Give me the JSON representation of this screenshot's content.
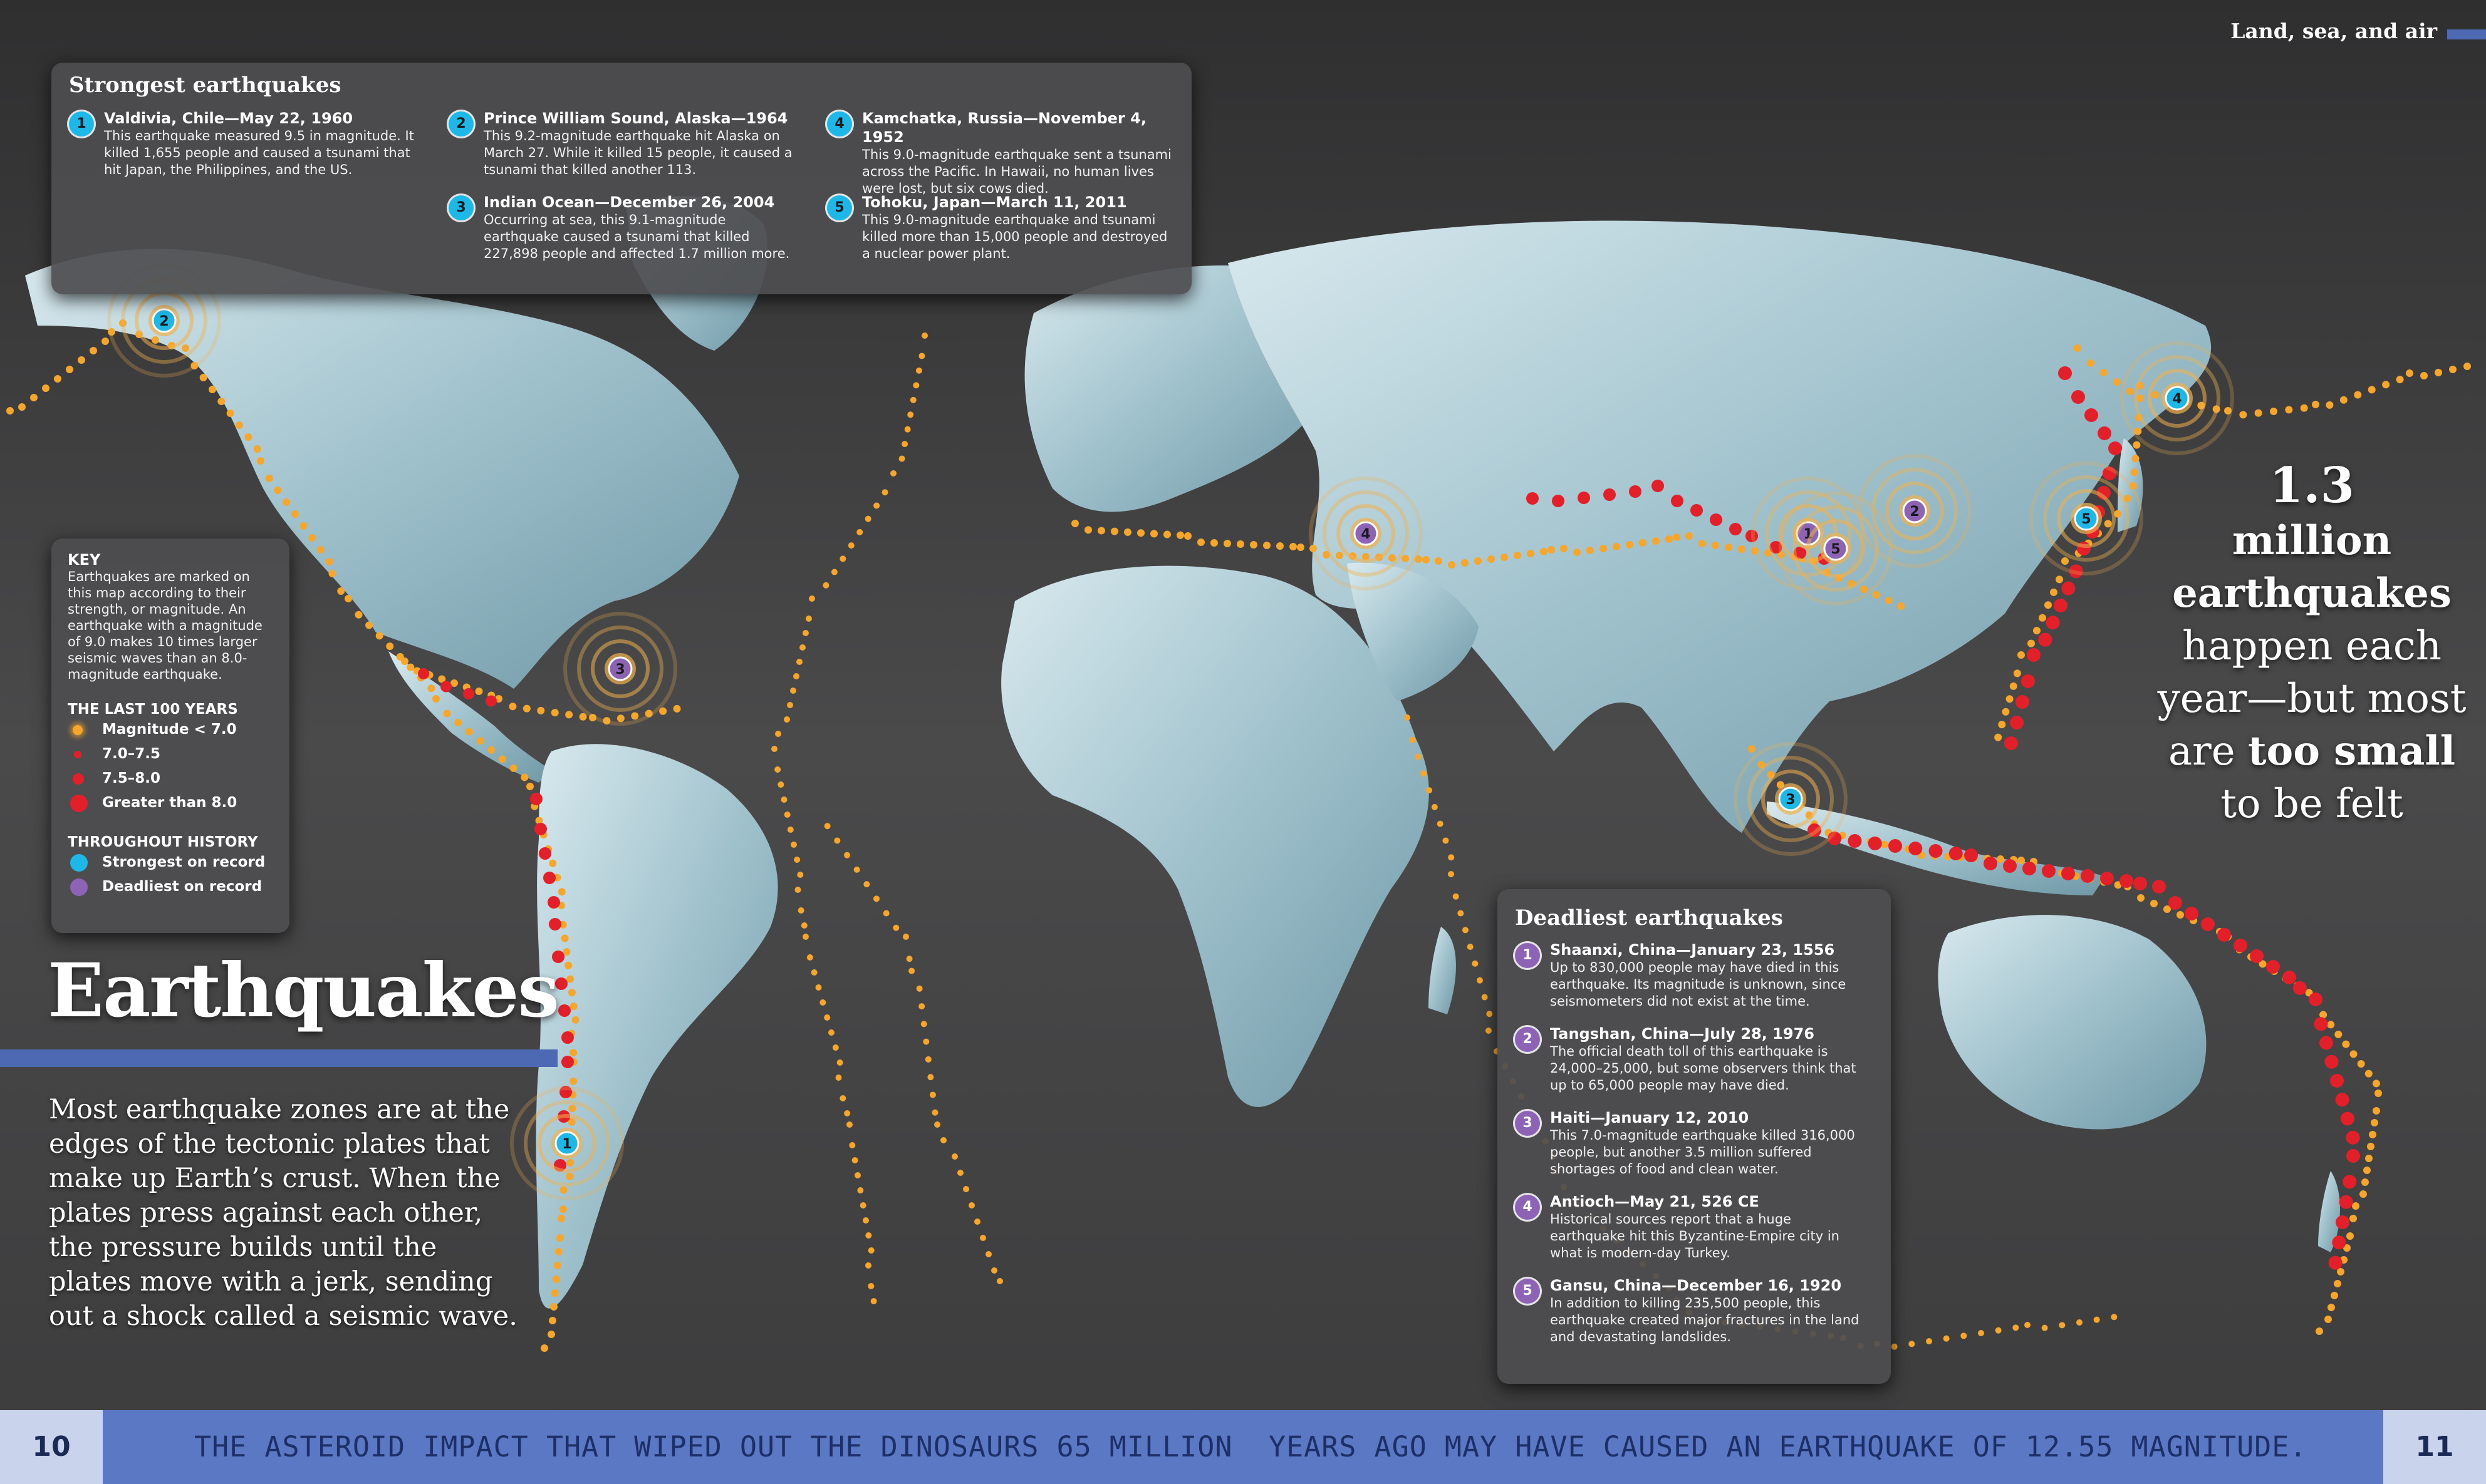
{
  "section": {
    "label": "Land, sea, and air"
  },
  "headline": "Earthquakes",
  "intro": "Most earthquake zones are at the edges of the tectonic plates that make up Earth’s crust. When the plates press against each other, the pressure builds until the plates move with a jerk, sending out a shock called a seismic wave.",
  "stat": {
    "number": "1.3",
    "line2": "million",
    "line3": "earthquakes",
    "line4": "happen each",
    "line5": "year—but most",
    "line6_a": "are ",
    "line6_b": "too small",
    "line7": "to be felt"
  },
  "strongest": {
    "title": "Strongest earthquakes",
    "items": [
      {
        "num": "1",
        "title": "Valdivia, Chile—May 22, 1960",
        "text": "This earthquake measured 9.5 in magnitude. It killed 1,655 people and caused a tsunami that hit Japan, the Philippines, and the US."
      },
      {
        "num": "2",
        "title": "Prince William Sound, Alaska—1964",
        "text": "This 9.2-magnitude earthquake hit Alaska on March 27. While it killed 15 people, it caused a tsunami that killed another 113."
      },
      {
        "num": "3",
        "title": "Indian Ocean—December 26, 2004",
        "text": "Occurring at sea, this 9.1-magnitude earthquake caused a tsunami that killed 227,898 people and affected 1.7 million more."
      },
      {
        "num": "4",
        "title": "Kamchatka, Russia—November 4, 1952",
        "text": "This 9.0-magnitude earthquake sent a tsunami across the Pacific. In Hawaii, no human lives were lost, but six cows died."
      },
      {
        "num": "5",
        "title": "Tohoku, Japan—March 11, 2011",
        "text": "This 9.0-magnitude earthquake and tsunami killed more than 15,000 people and destroyed a nuclear power plant."
      }
    ]
  },
  "deadliest": {
    "title": "Deadliest earthquakes",
    "items": [
      {
        "num": "1",
        "title": "Shaanxi, China—January 23, 1556",
        "text": "Up to 830,000 people may have died in this earthquake. Its magnitude is unknown, since seismometers did not exist at the time."
      },
      {
        "num": "2",
        "title": "Tangshan, China—July 28, 1976",
        "text": "The official death toll of this earthquake is 24,000–25,000, but some observers think that up to 65,000 people may have died."
      },
      {
        "num": "3",
        "title": "Haiti—January 12, 2010",
        "text": "This 7.0-magnitude earthquake killed 316,000 people, but another 3.5 million suffered shortages of food and clean water."
      },
      {
        "num": "4",
        "title": "Antioch—May 21, 526 CE",
        "text": "Historical sources report that a huge earthquake hit this Byzantine-Empire city in what is modern-day Turkey."
      },
      {
        "num": "5",
        "title": "Gansu, China—December 16, 1920",
        "text": "In addition to killing 235,500 people, this earthquake created major fractures in the land and devastating landslides."
      }
    ]
  },
  "key": {
    "title": "KEY",
    "text": "Earthquakes are marked on this map according to their strength, or magnitude. An earthquake with a magnitude of 9.0 makes 10 times larger seismic waves than an 8.0-magnitude earthquake.",
    "section1": "THE LAST 100 YEARS",
    "items1": [
      "Magnitude < 7.0",
      "7.0–7.5",
      "7.5–8.0",
      "Greater than 8.0"
    ],
    "section2": "THROUGHOUT HISTORY",
    "items2": [
      "Strongest on record",
      "Deadliest on record"
    ],
    "colors": {
      "small": "#f6a62a",
      "red": "#e3202a",
      "blue": "#1db7e8",
      "purple": "#8d63b5"
    }
  },
  "footer": {
    "page_left": "10",
    "page_right": "11",
    "fact_part1": "THE ASTEROID IMPACT THAT WIPED OUT THE DINOSAURS 65 MILLION",
    "fact_part2": "YEARS AGO MAY HAVE CAUSED AN EARTHQUAKE OF 12.55 MAGNITUDE."
  },
  "map_markers": {
    "strongest_labels": [
      "1",
      "2",
      "3",
      "4",
      "5"
    ],
    "deadliest_labels": [
      "1",
      "2",
      "3",
      "4",
      "5"
    ]
  }
}
